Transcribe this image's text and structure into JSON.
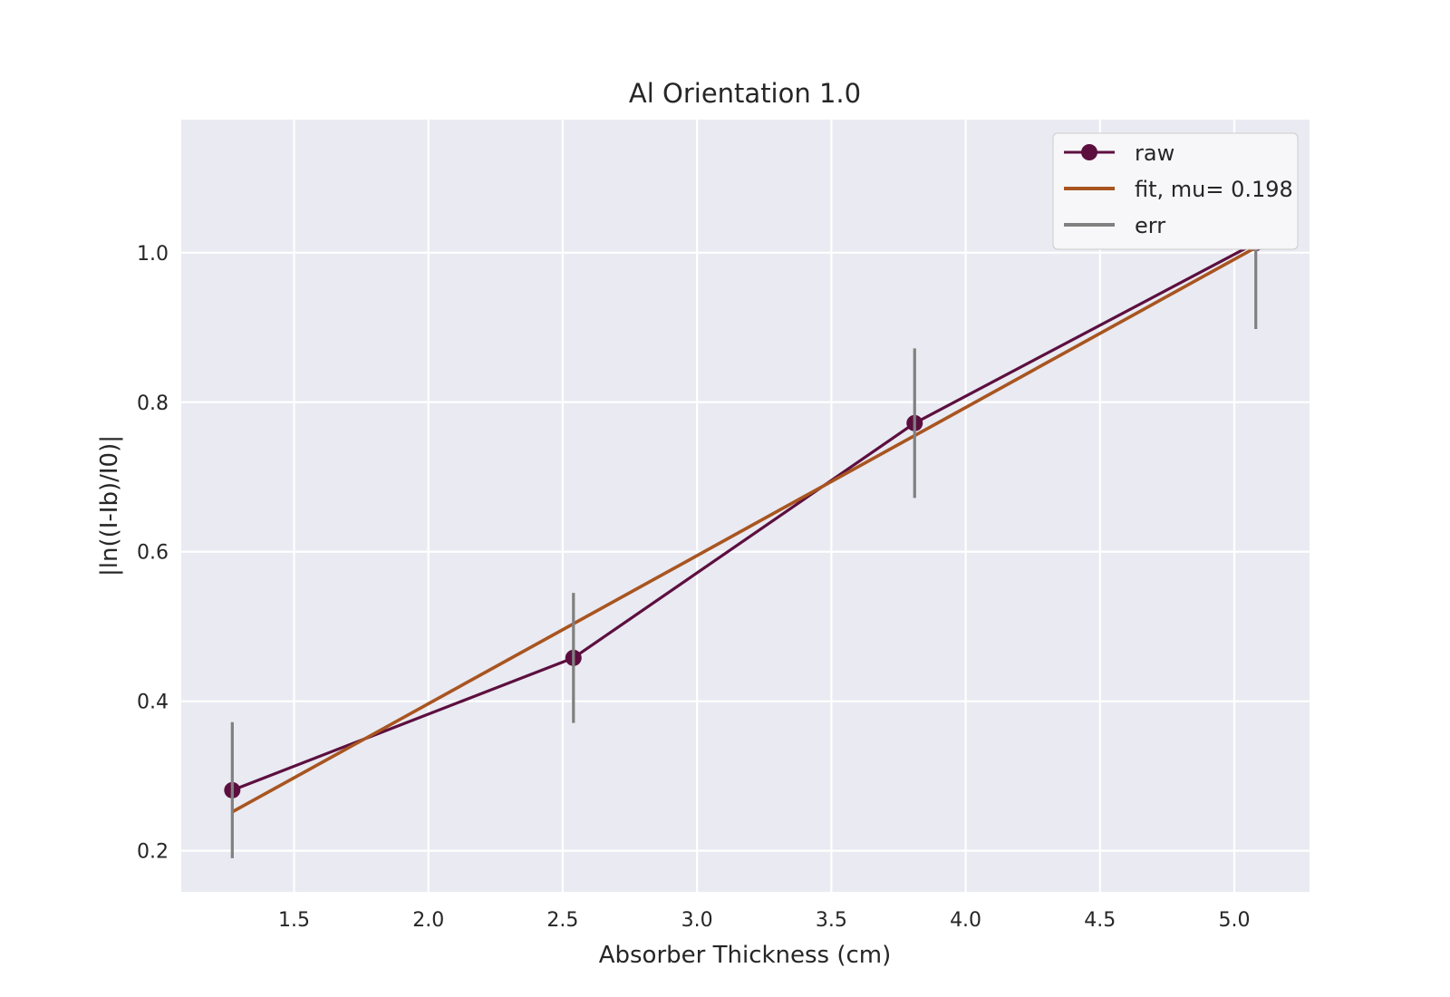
{
  "chart_data": {
    "type": "line",
    "title": "Al Orientation 1.0",
    "xlabel": "Absorber Thickness (cm)",
    "ylabel": "|ln((I-Ib)/I0)|",
    "xlim": [
      1.08,
      5.28
    ],
    "ylim": [
      0.145,
      1.178
    ],
    "xticks": [
      1.5,
      2.0,
      2.5,
      3.0,
      3.5,
      4.0,
      4.5,
      5.0
    ],
    "xtick_labels": [
      "1.5",
      "2.0",
      "2.5",
      "3.0",
      "3.5",
      "4.0",
      "4.5",
      "5.0"
    ],
    "yticks": [
      0.2,
      0.4,
      0.6,
      0.8,
      1.0
    ],
    "ytick_labels": [
      "0.2",
      "0.4",
      "0.6",
      "0.8",
      "1.0"
    ],
    "grid": true,
    "legend_position": "top-right",
    "series": [
      {
        "name": "raw",
        "kind": "line-marker",
        "color": "#5c0f3f",
        "x": [
          1.27,
          2.54,
          3.81,
          5.08
        ],
        "y": [
          0.281,
          0.458,
          0.772,
          1.013
        ]
      },
      {
        "name": "fit, mu= 0.198",
        "kind": "line",
        "color": "#a85520",
        "x": [
          1.27,
          5.08
        ],
        "y": [
          0.252,
          1.007
        ]
      },
      {
        "name": "err",
        "kind": "errorbar",
        "color": "#808080",
        "x": [
          1.27,
          2.54,
          3.81,
          5.08
        ],
        "y": [
          0.281,
          0.458,
          0.772,
          1.013
        ],
        "err": [
          0.091,
          0.087,
          0.1,
          0.115
        ]
      }
    ]
  },
  "colors": {
    "plot_background": "#eaeaf2",
    "grid": "#ffffff",
    "text": "#262626"
  }
}
